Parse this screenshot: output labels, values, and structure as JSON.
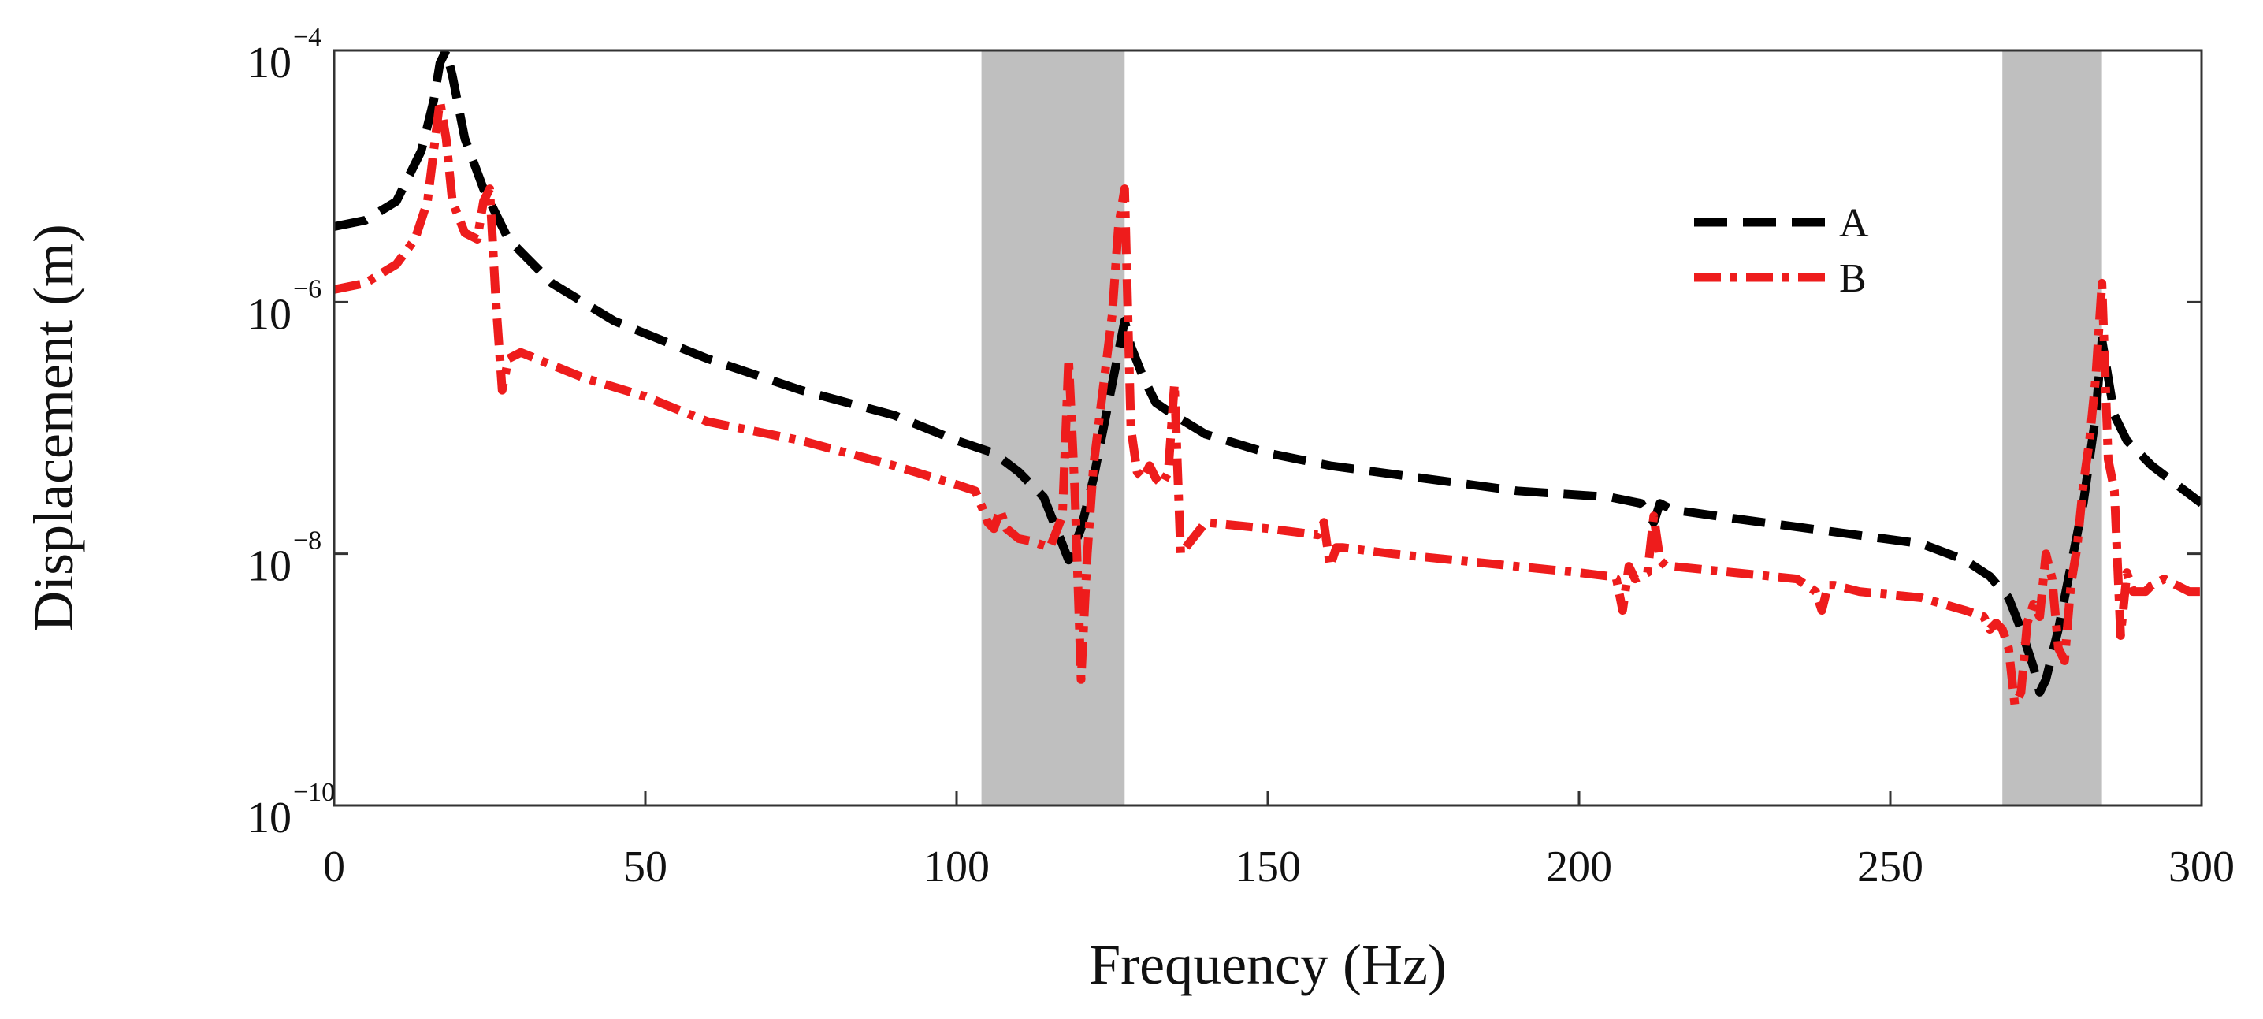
{
  "chart_data": {
    "type": "line",
    "title": "",
    "xlabel": "Frequency (Hz)",
    "ylabel": "Displacement (m)",
    "xlim": [
      0,
      300
    ],
    "ylim_log10": [
      -10,
      -4
    ],
    "x_scale": "linear",
    "y_scale": "log",
    "x_ticks": [
      0,
      50,
      100,
      150,
      200,
      250,
      300
    ],
    "y_ticks": [
      {
        "base": "10",
        "exp": "−4",
        "value": -4
      },
      {
        "base": "10",
        "exp": "−6",
        "value": -6
      },
      {
        "base": "10",
        "exp": "−8",
        "value": -8
      },
      {
        "base": "10",
        "exp": "−10",
        "value": -10
      }
    ],
    "grid": false,
    "legend_position": "top-right",
    "shaded_bands": [
      {
        "x_start": 104,
        "x_end": 127,
        "color": "#bfbfbf"
      },
      {
        "x_start": 268,
        "x_end": 284,
        "color": "#bfbfbf"
      }
    ],
    "series": [
      {
        "name": "A",
        "color": "#000000",
        "line_style": "dashed",
        "x": [
          0,
          5,
          10,
          14,
          16,
          17,
          18,
          19,
          21,
          24,
          28,
          35,
          45,
          60,
          75,
          90,
          100,
          106,
          110,
          114,
          116,
          118,
          120,
          122,
          124,
          126,
          127,
          128,
          130,
          132,
          135,
          140,
          150,
          160,
          175,
          190,
          205,
          210,
          212,
          213,
          215,
          225,
          240,
          255,
          262,
          266,
          269,
          271,
          273,
          274,
          275,
          277,
          279,
          281,
          283,
          284,
          285,
          286,
          288,
          292,
          296,
          300
        ],
        "log10_y": [
          -5.4,
          -5.35,
          -5.2,
          -4.8,
          -4.4,
          -4.1,
          -4.0,
          -4.2,
          -4.7,
          -5.1,
          -5.5,
          -5.85,
          -6.15,
          -6.45,
          -6.7,
          -6.9,
          -7.1,
          -7.2,
          -7.35,
          -7.55,
          -7.8,
          -8.05,
          -7.8,
          -7.4,
          -6.9,
          -6.4,
          -6.15,
          -6.35,
          -6.6,
          -6.8,
          -6.9,
          -7.05,
          -7.2,
          -7.3,
          -7.4,
          -7.5,
          -7.55,
          -7.6,
          -7.75,
          -7.6,
          -7.65,
          -7.72,
          -7.82,
          -7.92,
          -8.05,
          -8.18,
          -8.35,
          -8.6,
          -8.9,
          -9.1,
          -9.0,
          -8.6,
          -8.1,
          -7.6,
          -6.9,
          -6.3,
          -6.6,
          -6.9,
          -7.1,
          -7.3,
          -7.45,
          -7.6
        ]
      },
      {
        "name": "B",
        "color": "#ee1c1c",
        "line_style": "dashdot",
        "x": [
          0,
          5,
          10,
          13,
          15,
          16,
          17,
          18,
          19,
          21,
          23,
          24,
          25,
          26,
          27,
          28,
          30,
          35,
          40,
          50,
          60,
          75,
          90,
          100,
          103,
          104,
          105,
          106,
          107,
          108,
          110,
          112,
          115,
          117,
          118,
          119,
          120,
          121,
          122,
          123,
          124,
          125,
          126,
          127,
          128,
          129,
          130,
          131,
          132,
          133,
          134,
          135,
          136,
          140,
          150,
          158,
          159,
          160,
          161,
          162,
          170,
          180,
          190,
          200,
          205,
          206,
          207,
          208,
          209,
          211,
          212,
          213,
          214,
          215,
          225,
          235,
          238,
          239,
          240,
          241,
          245,
          255,
          262,
          265,
          266,
          267,
          268,
          269,
          270,
          271,
          272,
          273,
          274,
          275,
          276,
          277,
          278,
          279,
          280,
          281,
          282,
          283,
          284,
          285,
          286,
          287,
          288,
          289,
          290,
          291,
          292,
          294,
          296,
          298,
          300
        ],
        "log10_y": [
          -5.9,
          -5.85,
          -5.7,
          -5.5,
          -5.2,
          -4.8,
          -4.4,
          -4.7,
          -5.2,
          -5.45,
          -5.5,
          -5.2,
          -5.1,
          -6.0,
          -6.7,
          -6.45,
          -6.4,
          -6.5,
          -6.6,
          -6.75,
          -6.95,
          -7.1,
          -7.3,
          -7.45,
          -7.5,
          -7.62,
          -7.75,
          -7.8,
          -7.65,
          -7.8,
          -7.88,
          -7.9,
          -7.95,
          -7.7,
          -6.45,
          -7.5,
          -9.0,
          -8.0,
          -7.3,
          -6.9,
          -6.5,
          -6.1,
          -5.4,
          -5.1,
          -7.0,
          -7.35,
          -7.4,
          -7.3,
          -7.4,
          -7.45,
          -7.35,
          -6.65,
          -8.0,
          -7.75,
          -7.8,
          -7.85,
          -7.75,
          -8.1,
          -7.95,
          -7.95,
          -8.0,
          -8.05,
          -8.1,
          -8.15,
          -8.18,
          -8.2,
          -8.45,
          -8.1,
          -8.2,
          -8.15,
          -7.7,
          -8.05,
          -8.1,
          -8.1,
          -8.15,
          -8.2,
          -8.3,
          -8.45,
          -8.25,
          -8.25,
          -8.3,
          -8.35,
          -8.45,
          -8.5,
          -8.6,
          -8.55,
          -8.6,
          -8.75,
          -9.2,
          -9.1,
          -8.55,
          -8.4,
          -8.5,
          -8.0,
          -8.2,
          -8.75,
          -8.85,
          -8.25,
          -7.95,
          -7.45,
          -7.1,
          -6.6,
          -5.85,
          -7.25,
          -7.5,
          -8.65,
          -8.15,
          -8.3,
          -8.3,
          -8.3,
          -8.25,
          -8.2,
          -8.25,
          -8.3,
          -8.3
        ]
      }
    ]
  }
}
